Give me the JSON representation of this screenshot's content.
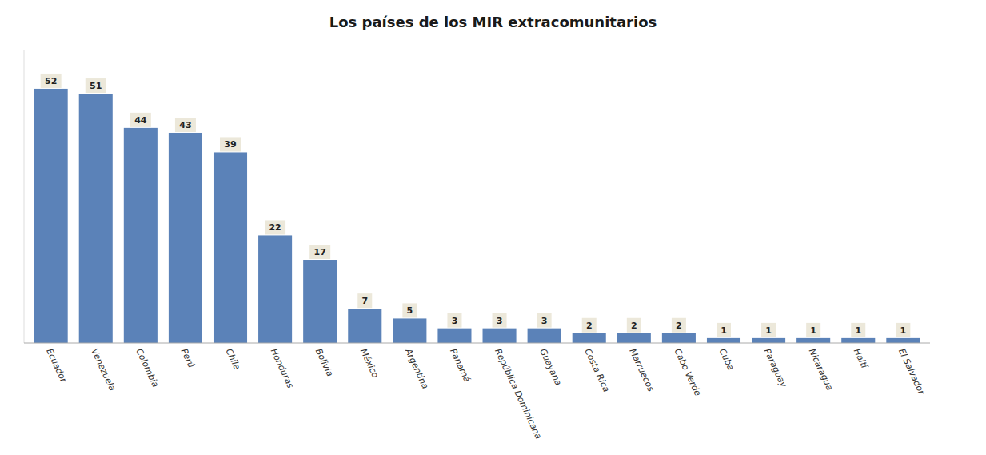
{
  "chart_data": {
    "type": "bar",
    "title": "Los países de los MIR extracomunitarios",
    "categories": [
      "Ecuador",
      "Venezuela",
      "Colombia",
      "Perú",
      "Chile",
      "Honduras",
      "Bolivia",
      "México",
      "Argentina",
      "Panamá",
      "República Dominicana",
      "Guayana",
      "Costa Rica",
      "Marruecos",
      "Cabo Verde",
      "Cuba",
      "Paraguay",
      "Nicaragua",
      "Haití",
      "El Salvador"
    ],
    "values": [
      52,
      51,
      44,
      43,
      39,
      22,
      17,
      7,
      5,
      3,
      3,
      3,
      2,
      2,
      2,
      1,
      1,
      1,
      1,
      1
    ],
    "color": "#5b82b8",
    "ylim": [
      0,
      60
    ],
    "data_labels": true,
    "tick_labels": "x",
    "grid": false
  }
}
